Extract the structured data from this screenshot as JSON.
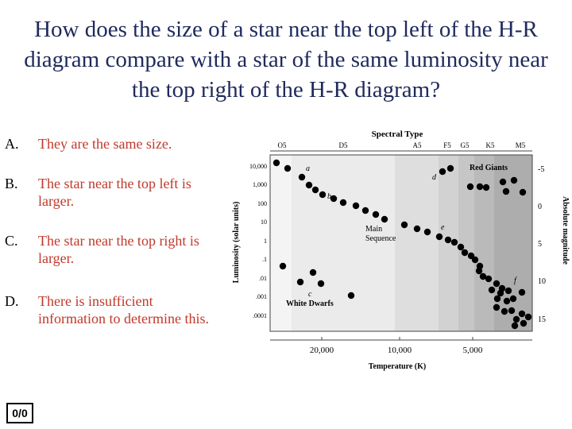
{
  "question": "How does the size of a star near the top left of the H-R diagram compare with a star of the same luminosity near the top right of the H-R diagram?",
  "options": [
    {
      "letter": "A.",
      "text": "They are the same size."
    },
    {
      "letter": "B.",
      "text": "The star near the top left is larger."
    },
    {
      "letter": "C.",
      "text": "The star near the top right is larger."
    },
    {
      "letter": "D.",
      "text": "There is insufficient information to determine this."
    }
  ],
  "response_counter": "0/0",
  "diagram": {
    "spectral_title": "Spectral Type",
    "spectral_types": [
      "O5",
      "D5",
      "A5",
      "F5",
      "G5",
      "K5",
      "M5"
    ],
    "luminosity_label": "Luminosity (solar units)",
    "luminosity_ticks": [
      "10,000",
      "1,000",
      "100",
      "10",
      "1",
      ".1",
      ".01",
      ".001",
      ".0001"
    ],
    "magnitude_label": "Absolute magnitude",
    "magnitude_ticks": [
      "-5",
      "0",
      "5",
      "10",
      "15"
    ],
    "temperature_label": "Temperature (K)",
    "temperature_ticks": [
      "20,000",
      "10,000",
      "5,000"
    ],
    "regions": {
      "main_sequence": "Main\nSequence",
      "red_giants": "Red Giants",
      "white_dwarfs": "White Dwarfs"
    },
    "point_labels": [
      "a",
      "b",
      "c",
      "d",
      "e",
      "f"
    ]
  }
}
